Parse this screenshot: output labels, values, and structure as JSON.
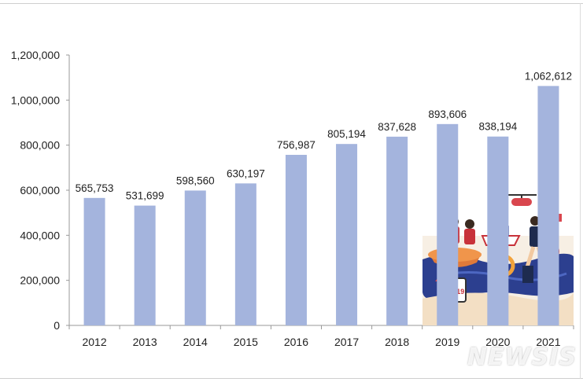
{
  "colors": {
    "bar": "#a4b4dd",
    "axis": "#999999",
    "text": "#222222"
  },
  "illustration": {
    "icon": "sea-rescue-illustration-icon",
    "badge_text": "119"
  },
  "watermark": {
    "text": "NEWSIS"
  },
  "chart_data": {
    "type": "bar",
    "categories": [
      "2012",
      "2013",
      "2014",
      "2015",
      "2016",
      "2017",
      "2018",
      "2019",
      "2020",
      "2021"
    ],
    "values": [
      565753,
      531699,
      598560,
      630197,
      756987,
      805194,
      837628,
      893606,
      838194,
      1062612
    ],
    "value_labels": [
      "565,753",
      "531,699",
      "598,560",
      "630,197",
      "756,987",
      "805,194",
      "837,628",
      "893,606",
      "838,194",
      "1,062,612"
    ],
    "ylim": [
      0,
      1200000
    ],
    "yticks": [
      0,
      200000,
      400000,
      600000,
      800000,
      1000000,
      1200000
    ],
    "ytick_labels": [
      "0",
      "200,000",
      "400,000",
      "600,000",
      "800,000",
      "1,000,000",
      "1,200,000"
    ],
    "grid": false,
    "legend": "none",
    "title": "",
    "xlabel": "",
    "ylabel": ""
  }
}
